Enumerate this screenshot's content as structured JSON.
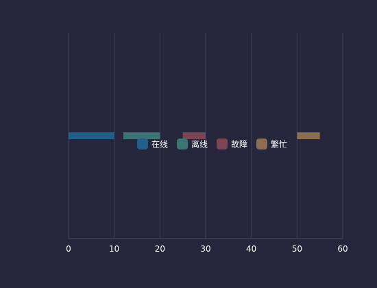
{
  "chart_data": {
    "type": "bar",
    "orientation": "horizontal",
    "subtype": "timeline",
    "title": "",
    "xlabel": "",
    "ylabel": "",
    "xlim": [
      0,
      60
    ],
    "xticks": [
      0,
      10,
      20,
      30,
      40,
      50,
      60
    ],
    "grid": true,
    "legend_position": "center",
    "series": [
      {
        "name": "在线",
        "color": "#1f5f8a",
        "intervals": [
          [
            0,
            10
          ]
        ]
      },
      {
        "name": "离线",
        "color": "#3b7473",
        "intervals": [
          [
            12,
            20
          ]
        ]
      },
      {
        "name": "故障",
        "color": "#7d4553",
        "intervals": [
          [
            25,
            30
          ]
        ]
      },
      {
        "name": "繁忙",
        "color": "#8a6e4f",
        "intervals": [
          [
            50,
            55
          ]
        ]
      }
    ]
  }
}
